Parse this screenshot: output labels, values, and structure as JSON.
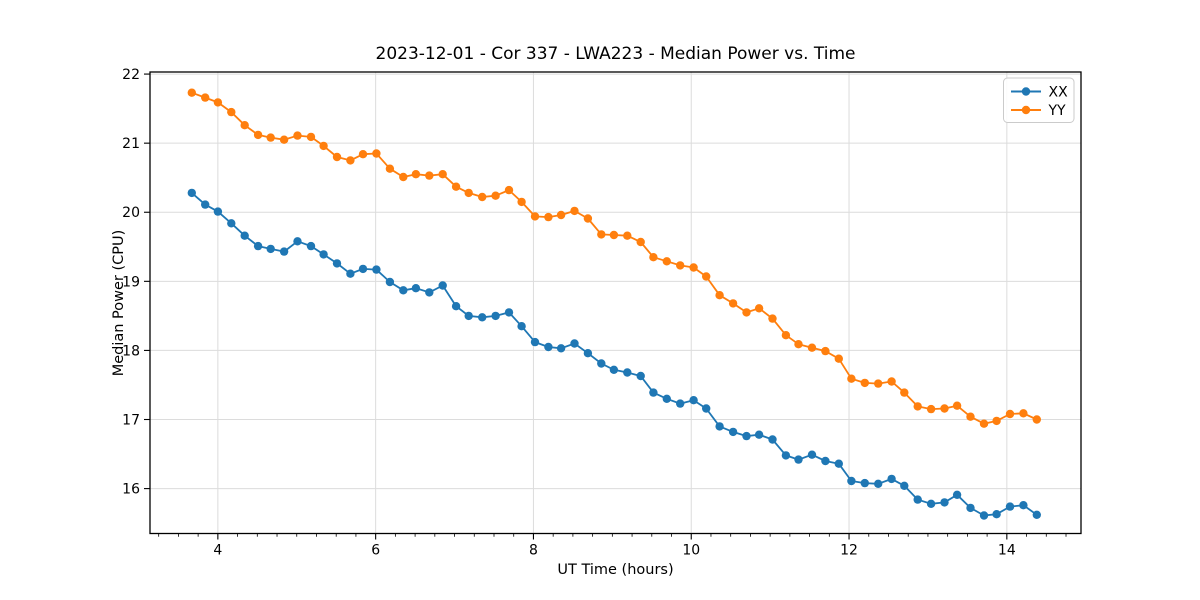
{
  "chart_data": {
    "type": "line",
    "title": "2023-12-01 - Cor 337 - LWA223 - Median Power vs. Time",
    "xlabel": "UT Time (hours)",
    "ylabel": "Median Power (CPU)",
    "xlim": [
      3.14,
      14.94
    ],
    "ylim": [
      15.35,
      22.03
    ],
    "xticks": [
      4,
      6,
      8,
      10,
      12,
      14
    ],
    "yticks": [
      16,
      17,
      18,
      19,
      20,
      21,
      22
    ],
    "x_minor_step": 0.25,
    "grid": true,
    "grid_color": "#dcdcdc",
    "spine_color": "#000000",
    "legend_position": "upper right",
    "x": [
      3.67,
      3.84,
      4.0,
      4.17,
      4.34,
      4.51,
      4.67,
      4.84,
      5.01,
      5.18,
      5.34,
      5.51,
      5.68,
      5.84,
      6.01,
      6.18,
      6.35,
      6.51,
      6.68,
      6.85,
      7.02,
      7.18,
      7.35,
      7.52,
      7.69,
      7.85,
      8.02,
      8.19,
      8.35,
      8.52,
      8.69,
      8.86,
      9.02,
      9.19,
      9.36,
      9.52,
      9.69,
      9.86,
      10.03,
      10.19,
      10.36,
      10.53,
      10.7,
      10.86,
      11.03,
      11.2,
      11.36,
      11.53,
      11.7,
      11.87,
      12.03,
      12.2,
      12.37,
      12.54,
      12.7,
      12.87,
      13.04,
      13.21,
      13.37,
      13.54,
      13.71,
      13.87,
      14.04,
      14.21,
      14.38
    ],
    "series": [
      {
        "name": "XX",
        "color": "#1f77b4",
        "values": [
          20.28,
          20.11,
          20.01,
          19.84,
          19.66,
          19.51,
          19.47,
          19.43,
          19.58,
          19.51,
          19.39,
          19.26,
          19.11,
          19.18,
          19.17,
          18.99,
          18.87,
          18.9,
          18.84,
          18.94,
          18.64,
          18.5,
          18.48,
          18.5,
          18.55,
          18.35,
          18.12,
          18.05,
          18.03,
          18.1,
          17.96,
          17.81,
          17.72,
          17.68,
          17.63,
          17.39,
          17.3,
          17.23,
          17.28,
          17.16,
          16.9,
          16.82,
          16.76,
          16.78,
          16.71,
          16.48,
          16.42,
          16.49,
          16.4,
          16.36,
          16.11,
          16.08,
          16.07,
          16.14,
          16.04,
          15.84,
          15.78,
          15.8,
          15.91,
          15.72,
          15.61,
          15.63,
          15.74,
          15.76,
          15.62
        ]
      },
      {
        "name": "YY",
        "color": "#ff7f0e",
        "values": [
          21.73,
          21.66,
          21.59,
          21.45,
          21.26,
          21.12,
          21.08,
          21.05,
          21.11,
          21.09,
          20.96,
          20.8,
          20.75,
          20.84,
          20.85,
          20.63,
          20.51,
          20.55,
          20.53,
          20.55,
          20.37,
          20.28,
          20.22,
          20.24,
          20.32,
          20.15,
          19.94,
          19.93,
          19.96,
          20.02,
          19.91,
          19.68,
          19.67,
          19.66,
          19.57,
          19.35,
          19.29,
          19.23,
          19.2,
          19.07,
          18.8,
          18.68,
          18.55,
          18.61,
          18.46,
          18.22,
          18.09,
          18.04,
          17.99,
          17.88,
          17.59,
          17.53,
          17.52,
          17.55,
          17.39,
          17.19,
          17.15,
          17.16,
          17.2,
          17.04,
          16.94,
          16.98,
          17.08,
          17.09,
          17.0
        ]
      }
    ]
  }
}
